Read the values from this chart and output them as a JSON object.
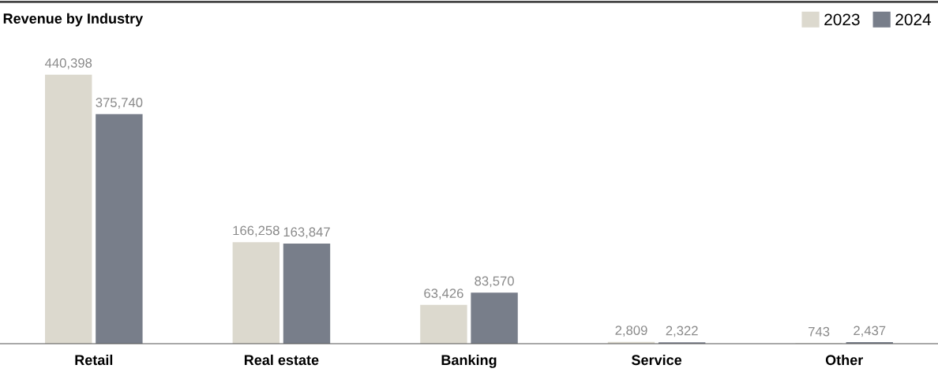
{
  "chart_data": {
    "type": "bar",
    "title": "Revenue by Industry",
    "categories": [
      "Retail",
      "Real estate",
      "Banking",
      "Service",
      "Other"
    ],
    "series": [
      {
        "name": "2023",
        "color": "#dcd9ce",
        "values": [
          440398,
          166258,
          63426,
          2809,
          743
        ],
        "value_labels": [
          "440,398",
          "166,258",
          "63,426",
          "2,809",
          "743"
        ]
      },
      {
        "name": "2024",
        "color": "#787e8a",
        "values": [
          375740,
          163847,
          83570,
          2322,
          2437
        ],
        "value_labels": [
          "375,740",
          "163,847",
          "83,570",
          "2,322",
          "2,437"
        ]
      }
    ],
    "legend": "top right",
    "grid": false
  }
}
